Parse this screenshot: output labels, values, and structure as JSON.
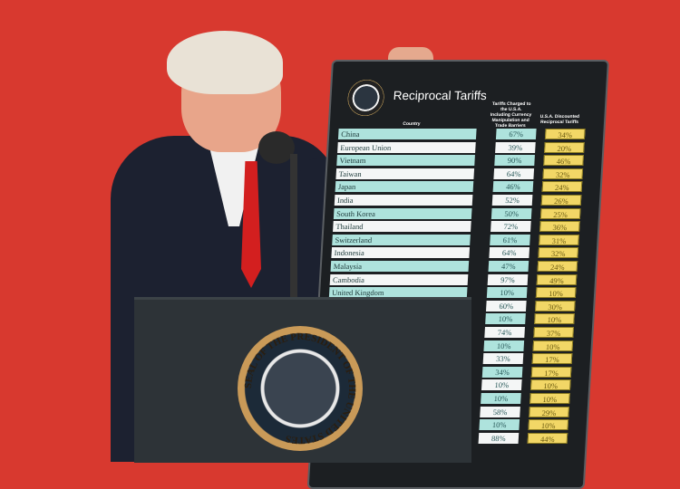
{
  "board": {
    "title": "Reciprocal Tariffs",
    "country_header": "Country",
    "charged_header": "Tariffs Charged to the U.S.A. Including Currency Manipulation and Trade Barriers",
    "discounted_header": "U.S.A. Discounted Reciprocal Tariffs",
    "rows": [
      {
        "country": "China",
        "charged": "67%",
        "discounted": "34%"
      },
      {
        "country": "European Union",
        "charged": "39%",
        "discounted": "20%"
      },
      {
        "country": "Vietnam",
        "charged": "90%",
        "discounted": "46%"
      },
      {
        "country": "Taiwan",
        "charged": "64%",
        "discounted": "32%"
      },
      {
        "country": "Japan",
        "charged": "46%",
        "discounted": "24%"
      },
      {
        "country": "India",
        "charged": "52%",
        "discounted": "26%"
      },
      {
        "country": "South Korea",
        "charged": "50%",
        "discounted": "25%"
      },
      {
        "country": "Thailand",
        "charged": "72%",
        "discounted": "36%"
      },
      {
        "country": "Switzerland",
        "charged": "61%",
        "discounted": "31%"
      },
      {
        "country": "Indonesia",
        "charged": "64%",
        "discounted": "32%"
      },
      {
        "country": "Malaysia",
        "charged": "47%",
        "discounted": "24%"
      },
      {
        "country": "Cambodia",
        "charged": "97%",
        "discounted": "49%"
      },
      {
        "country": "United Kingdom",
        "charged": "10%",
        "discounted": "10%"
      },
      {
        "country": "",
        "charged": "60%",
        "discounted": "30%"
      },
      {
        "country": "",
        "charged": "10%",
        "discounted": "10%"
      },
      {
        "country": "",
        "charged": "74%",
        "discounted": "37%"
      },
      {
        "country": "",
        "charged": "10%",
        "discounted": "10%"
      },
      {
        "country": "",
        "charged": "33%",
        "discounted": "17%"
      },
      {
        "country": "",
        "charged": "34%",
        "discounted": "17%"
      },
      {
        "country": "",
        "charged": "10%",
        "discounted": "10%"
      },
      {
        "country": "",
        "charged": "10%",
        "discounted": "10%"
      },
      {
        "country": "",
        "charged": "58%",
        "discounted": "29%"
      },
      {
        "country": "",
        "charged": "10%",
        "discounted": "10%"
      },
      {
        "country": "",
        "charged": "88%",
        "discounted": "44%"
      }
    ]
  },
  "podium_seal": {
    "text": "SEAL OF THE PRESIDENT OF THE UNITED STATES"
  },
  "colors": {
    "background": "#d8392f",
    "board": "#1c1f22",
    "teal_cell": "#aee3dd",
    "yellow_cell": "#f2d766",
    "podium": "#2d3337"
  }
}
